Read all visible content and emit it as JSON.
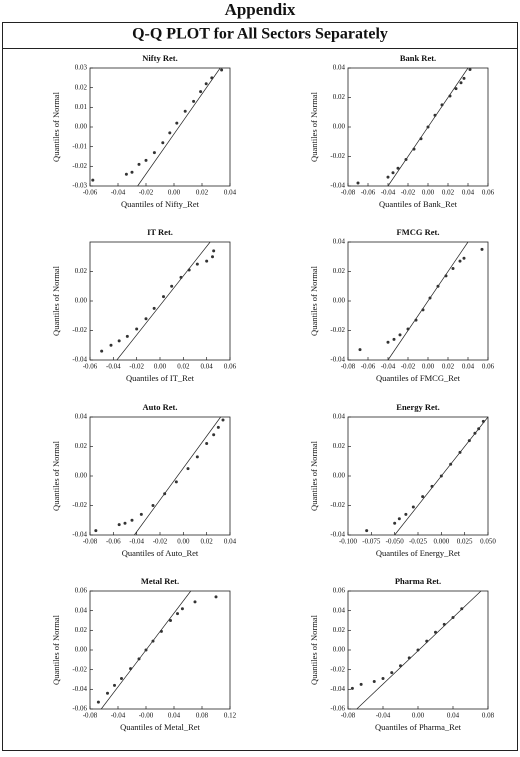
{
  "header": {
    "title": "Appendix",
    "subtitle": "Q-Q PLOT for All Sectors Separately"
  },
  "chart_data": [
    {
      "type": "scatter",
      "title": "Nifty Ret.",
      "x_label": "Quantiles of Nifty_Ret",
      "y_label": "Quantiles of Normal",
      "xlim": [
        -0.06,
        0.04
      ],
      "xticks": [
        -0.06,
        -0.04,
        -0.02,
        {
          "value": 0,
          "label": "0.00"
        },
        0.02,
        0.04
      ],
      "ylim": [
        -0.03,
        0.03
      ],
      "yticks": [
        -0.03,
        -0.02,
        -0.01,
        {
          "value": 0,
          "label": "0.00"
        },
        0.01,
        0.02,
        0.03
      ],
      "x": [
        -0.058,
        -0.034,
        -0.03,
        -0.025,
        -0.02,
        -0.014,
        -0.008,
        -0.003,
        0.002,
        0.008,
        0.014,
        0.019,
        0.023,
        0.027,
        0.034
      ],
      "values": [
        -0.027,
        -0.024,
        -0.023,
        -0.019,
        -0.017,
        -0.013,
        -0.008,
        -0.003,
        0.002,
        0.008,
        0.013,
        0.018,
        0.022,
        0.025,
        0.029
      ],
      "fit_line": {
        "x": [
          -0.026,
          0.033
        ],
        "values": [
          -0.03,
          0.03
        ]
      }
    },
    {
      "type": "scatter",
      "title": "Bank Ret.",
      "x_label": "Quantiles of Bank_Ret",
      "y_label": "Quantiles of Normal",
      "xlim": [
        -0.08,
        0.06
      ],
      "xticks": [
        -0.08,
        -0.06,
        -0.04,
        -0.02,
        {
          "value": 0,
          "label": "0.00"
        },
        0.02,
        0.04,
        0.06
      ],
      "ylim": [
        -0.04,
        0.04
      ],
      "yticks": [
        -0.04,
        -0.02,
        {
          "value": 0,
          "label": "0.00"
        },
        0.02,
        0.04
      ],
      "x": [
        -0.07,
        -0.04,
        -0.035,
        -0.03,
        -0.022,
        -0.014,
        -0.007,
        0,
        0.007,
        0.014,
        0.022,
        0.028,
        0.033,
        0.036,
        0.042
      ],
      "values": [
        -0.038,
        -0.034,
        -0.031,
        -0.028,
        -0.022,
        -0.015,
        -0.008,
        0,
        0.008,
        0.015,
        0.021,
        0.026,
        0.03,
        0.033,
        0.039
      ],
      "fit_line": {
        "x": [
          -0.04,
          0.04
        ],
        "values": [
          -0.04,
          0.04
        ]
      }
    },
    {
      "type": "scatter",
      "title": "IT Ret.",
      "x_label": "Quantiles of IT_Ret",
      "y_label": "Quantiles of Normal",
      "xlim": [
        -0.06,
        0.06
      ],
      "xticks": [
        -0.06,
        -0.04,
        -0.02,
        {
          "value": 0,
          "label": "0.00"
        },
        0.02,
        0.04,
        0.06
      ],
      "ylim": [
        -0.04,
        0.04
      ],
      "yticks": [
        -0.04,
        -0.02,
        {
          "value": 0,
          "label": "0.00"
        },
        0.02
      ],
      "x": [
        -0.05,
        -0.042,
        -0.035,
        -0.028,
        -0.02,
        -0.012,
        -0.005,
        0.003,
        0.01,
        0.018,
        0.025,
        0.032,
        0.04,
        0.045,
        0.046
      ],
      "values": [
        -0.034,
        -0.03,
        -0.027,
        -0.024,
        -0.019,
        -0.012,
        -0.005,
        0.003,
        0.01,
        0.016,
        0.021,
        0.025,
        0.027,
        0.03,
        0.034
      ],
      "fit_line": {
        "x": [
          -0.037,
          0.043
        ],
        "values": [
          -0.04,
          0.04
        ]
      }
    },
    {
      "type": "scatter",
      "title": "FMCG Ret.",
      "x_label": "Quantiles of FMCG_Ret",
      "y_label": "Quantiles of Normal",
      "xlim": [
        -0.08,
        0.06
      ],
      "xticks": [
        -0.08,
        -0.06,
        -0.04,
        -0.02,
        {
          "value": 0,
          "label": "0.00"
        },
        0.02,
        0.04,
        0.06
      ],
      "ylim": [
        -0.04,
        0.04
      ],
      "yticks": [
        -0.04,
        -0.02,
        {
          "value": 0,
          "label": "0.00"
        },
        0.02,
        0.04
      ],
      "x": [
        -0.068,
        -0.04,
        -0.034,
        -0.028,
        -0.02,
        -0.012,
        -0.005,
        0.002,
        0.01,
        0.018,
        0.025,
        0.032,
        0.036,
        0.054
      ],
      "values": [
        -0.033,
        -0.028,
        -0.026,
        -0.023,
        -0.019,
        -0.013,
        -0.006,
        0.002,
        0.01,
        0.017,
        0.022,
        0.027,
        0.029,
        0.035
      ],
      "fit_line": {
        "x": [
          -0.04,
          0.04
        ],
        "values": [
          -0.04,
          0.04
        ]
      }
    },
    {
      "type": "scatter",
      "title": "Auto Ret.",
      "x_label": "Quantiles of Auto_Ret",
      "y_label": "Quantiles of Normal",
      "xlim": [
        -0.08,
        0.04
      ],
      "xticks": [
        -0.08,
        -0.06,
        -0.04,
        -0.02,
        {
          "value": 0,
          "label": "0.00"
        },
        0.02,
        0.04
      ],
      "ylim": [
        -0.04,
        0.04
      ],
      "yticks": [
        -0.04,
        -0.02,
        {
          "value": 0,
          "label": "0.00"
        },
        0.02,
        0.04
      ],
      "x": [
        -0.075,
        -0.055,
        -0.05,
        -0.044,
        -0.036,
        -0.026,
        -0.016,
        -0.006,
        0.004,
        0.012,
        0.02,
        0.026,
        0.03,
        0.034
      ],
      "values": [
        -0.037,
        -0.033,
        -0.032,
        -0.03,
        -0.026,
        -0.02,
        -0.012,
        -0.004,
        0.005,
        0.013,
        0.022,
        0.028,
        0.033,
        0.038
      ],
      "fit_line": {
        "x": [
          -0.042,
          0.032
        ],
        "values": [
          -0.04,
          0.04
        ]
      }
    },
    {
      "type": "scatter",
      "title": "Energy Ret.",
      "x_label": "Quantiles of Energy_Ret",
      "y_label": "Quantiles of Normal",
      "xlim": [
        -0.1,
        0.05
      ],
      "xticks": [
        {
          "value": -0.1,
          "label": "-0.100"
        },
        -0.075,
        {
          "value": -0.05,
          "label": "-0.050"
        },
        -0.025,
        {
          "value": 0,
          "label": "0.000"
        },
        0.025,
        {
          "value": 0.05,
          "label": "0.050"
        }
      ],
      "ylim": [
        -0.04,
        0.04
      ],
      "yticks": [
        -0.04,
        -0.02,
        {
          "value": 0,
          "label": "0.00"
        },
        0.02,
        0.04
      ],
      "x": [
        -0.08,
        -0.05,
        -0.045,
        -0.038,
        -0.03,
        -0.02,
        -0.01,
        0,
        0.01,
        0.02,
        0.03,
        0.036,
        0.04,
        0.045
      ],
      "values": [
        -0.037,
        -0.032,
        -0.029,
        -0.026,
        -0.021,
        -0.014,
        -0.007,
        0,
        0.008,
        0.016,
        0.024,
        0.029,
        0.032,
        0.037
      ],
      "fit_line": {
        "x": [
          -0.05,
          0.05
        ],
        "values": [
          -0.04,
          0.04
        ]
      }
    },
    {
      "type": "scatter",
      "title": "Metal Ret.",
      "x_label": "Quantiles of Metal_Ret",
      "y_label": "Quantiles of Normal",
      "xlim": [
        -0.08,
        0.12
      ],
      "xticks": [
        -0.08,
        -0.04,
        {
          "value": 0,
          "label": "-0.00"
        },
        0.04,
        0.08,
        0.12
      ],
      "ylim": [
        -0.06,
        0.06
      ],
      "yticks": [
        -0.06,
        -0.04,
        -0.02,
        {
          "value": 0,
          "label": "0.00"
        },
        0.02,
        0.04,
        0.06
      ],
      "x": [
        -0.068,
        -0.055,
        -0.045,
        -0.035,
        -0.022,
        -0.01,
        0,
        0.01,
        0.022,
        0.035,
        0.045,
        0.052,
        0.07,
        0.1
      ],
      "values": [
        -0.053,
        -0.044,
        -0.036,
        -0.029,
        -0.019,
        -0.009,
        0,
        0.009,
        0.019,
        0.03,
        0.037,
        0.042,
        0.049,
        0.054
      ],
      "fit_line": {
        "x": [
          -0.064,
          0.064
        ],
        "values": [
          -0.06,
          0.06
        ]
      }
    },
    {
      "type": "scatter",
      "title": "Pharma Ret.",
      "x_label": "Quantiles of Pharma_Ret",
      "y_label": "Quantiles of Normal",
      "xlim": [
        -0.08,
        0.08
      ],
      "xticks": [
        -0.08,
        -0.04,
        {
          "value": 0,
          "label": "0.00"
        },
        0.04,
        0.08
      ],
      "ylim": [
        -0.06,
        0.06
      ],
      "yticks": [
        -0.06,
        -0.04,
        -0.02,
        {
          "value": 0,
          "label": "0.00"
        },
        0.02,
        0.04,
        0.06
      ],
      "x": [
        -0.075,
        -0.065,
        -0.05,
        -0.04,
        -0.03,
        -0.02,
        -0.01,
        0,
        0.01,
        0.02,
        0.03,
        0.04,
        0.05
      ],
      "values": [
        -0.039,
        -0.035,
        -0.032,
        -0.029,
        -0.023,
        -0.016,
        -0.008,
        0,
        0.009,
        0.018,
        0.026,
        0.033,
        0.042
      ],
      "fit_line": {
        "x": [
          -0.07,
          0.072
        ],
        "values": [
          -0.06,
          0.06
        ]
      }
    }
  ]
}
